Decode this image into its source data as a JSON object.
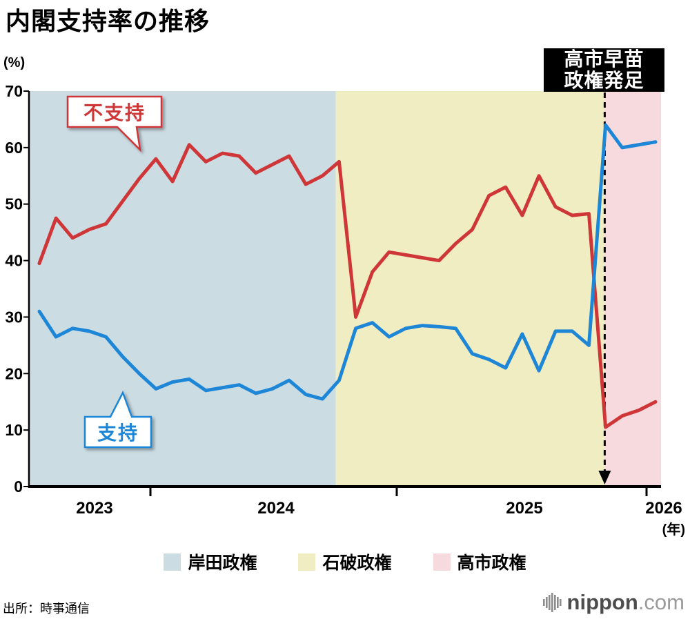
{
  "title": "内閣支持率の推移",
  "y_unit": "(%)",
  "x_unit": "(年)",
  "source": "出所：時事通信",
  "logo": {
    "name": "nippon",
    "tld": ".com"
  },
  "annotation_box": {
    "line1": "高市早苗",
    "line2": "政権発足"
  },
  "callouts": {
    "disapprove": "不支持",
    "approve": "支持"
  },
  "chart_data": {
    "type": "line",
    "title": "内閣支持率の推移",
    "ylabel": "(%)",
    "xlabel": "(年)",
    "ylim": [
      0,
      70
    ],
    "yticks": [
      0,
      10,
      20,
      30,
      40,
      50,
      60,
      70
    ],
    "xtick_labels": [
      "2023",
      "2024",
      "2025",
      "2026"
    ],
    "grid": false,
    "legend_position": "bottom",
    "regions": [
      {
        "label": "岸田政権",
        "color": "#cbdce3"
      },
      {
        "label": "石破政権",
        "color": "#f1edc2"
      },
      {
        "label": "高市政権",
        "color": "#f6dade"
      }
    ],
    "region_boundaries_index": [
      17.8,
      33.95
    ],
    "series": [
      {
        "name": "不支持",
        "color": "#cf3638",
        "values": [
          39.5,
          47.5,
          44,
          45.5,
          46.5,
          50.5,
          54.5,
          58,
          54,
          60.5,
          57.5,
          59,
          58.5,
          55.5,
          57,
          58.5,
          53.5,
          55,
          57.5,
          30,
          38,
          41.5,
          41,
          40.5,
          40,
          43,
          45.5,
          51.5,
          53,
          48,
          55,
          49.5,
          48,
          48.3,
          10.5,
          12.5,
          13.5,
          15
        ]
      },
      {
        "name": "支持",
        "color": "#1e86d6",
        "values": [
          31,
          26.5,
          28,
          27.5,
          26.5,
          23,
          20,
          17.3,
          18.5,
          19,
          17,
          17.5,
          18,
          16.5,
          17.3,
          18.8,
          16.3,
          15.5,
          18.8,
          28,
          29,
          26.5,
          28,
          28.5,
          28.3,
          28,
          23.5,
          22.5,
          21,
          27,
          20.5,
          27.5,
          27.5,
          25,
          64,
          60,
          60.5,
          61
        ]
      }
    ],
    "annotation": {
      "text": "高市早苗政権発足",
      "at_index": 33.95
    }
  }
}
